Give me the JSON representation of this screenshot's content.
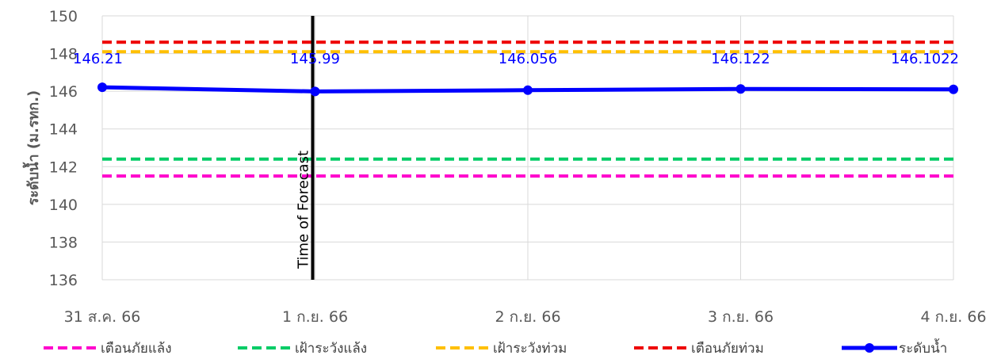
{
  "chart_data": {
    "type": "line",
    "categories": [
      "31 ส.ค. 66",
      "1 ก.ย. 66",
      "2 ก.ย. 66",
      "3 ก.ย. 66",
      "4 ก.ย. 66"
    ],
    "ylabel": "ระดับน้ำ (ม.รทก.)",
    "ylim": [
      136,
      150
    ],
    "yticks": [
      136,
      138,
      140,
      142,
      144,
      146,
      148,
      150
    ],
    "grid": true,
    "legend_position": "bottom",
    "annotation": {
      "label": "Time of Forecast",
      "at_category": "1 ก.ย. 66"
    },
    "thresholds": [
      {
        "name": "เตือนภัยแล้ง",
        "value": 141.5,
        "color": "#ff00cc"
      },
      {
        "name": "เฝ้าระวังแล้ง",
        "value": 142.4,
        "color": "#00cc66"
      },
      {
        "name": "เฝ้าระวังท่วม",
        "value": 148.1,
        "color": "#ffc000"
      },
      {
        "name": "เตือนภัยท่วม",
        "value": 148.6,
        "color": "#ee0000"
      }
    ],
    "series": [
      {
        "name": "ระดับน้ำ",
        "color": "#0000ff",
        "values": [
          146.21,
          145.99,
          146.056,
          146.122,
          146.1022
        ],
        "labels": [
          "146.21",
          "145.99",
          "146.056",
          "146.122",
          "146.1022"
        ]
      }
    ]
  }
}
